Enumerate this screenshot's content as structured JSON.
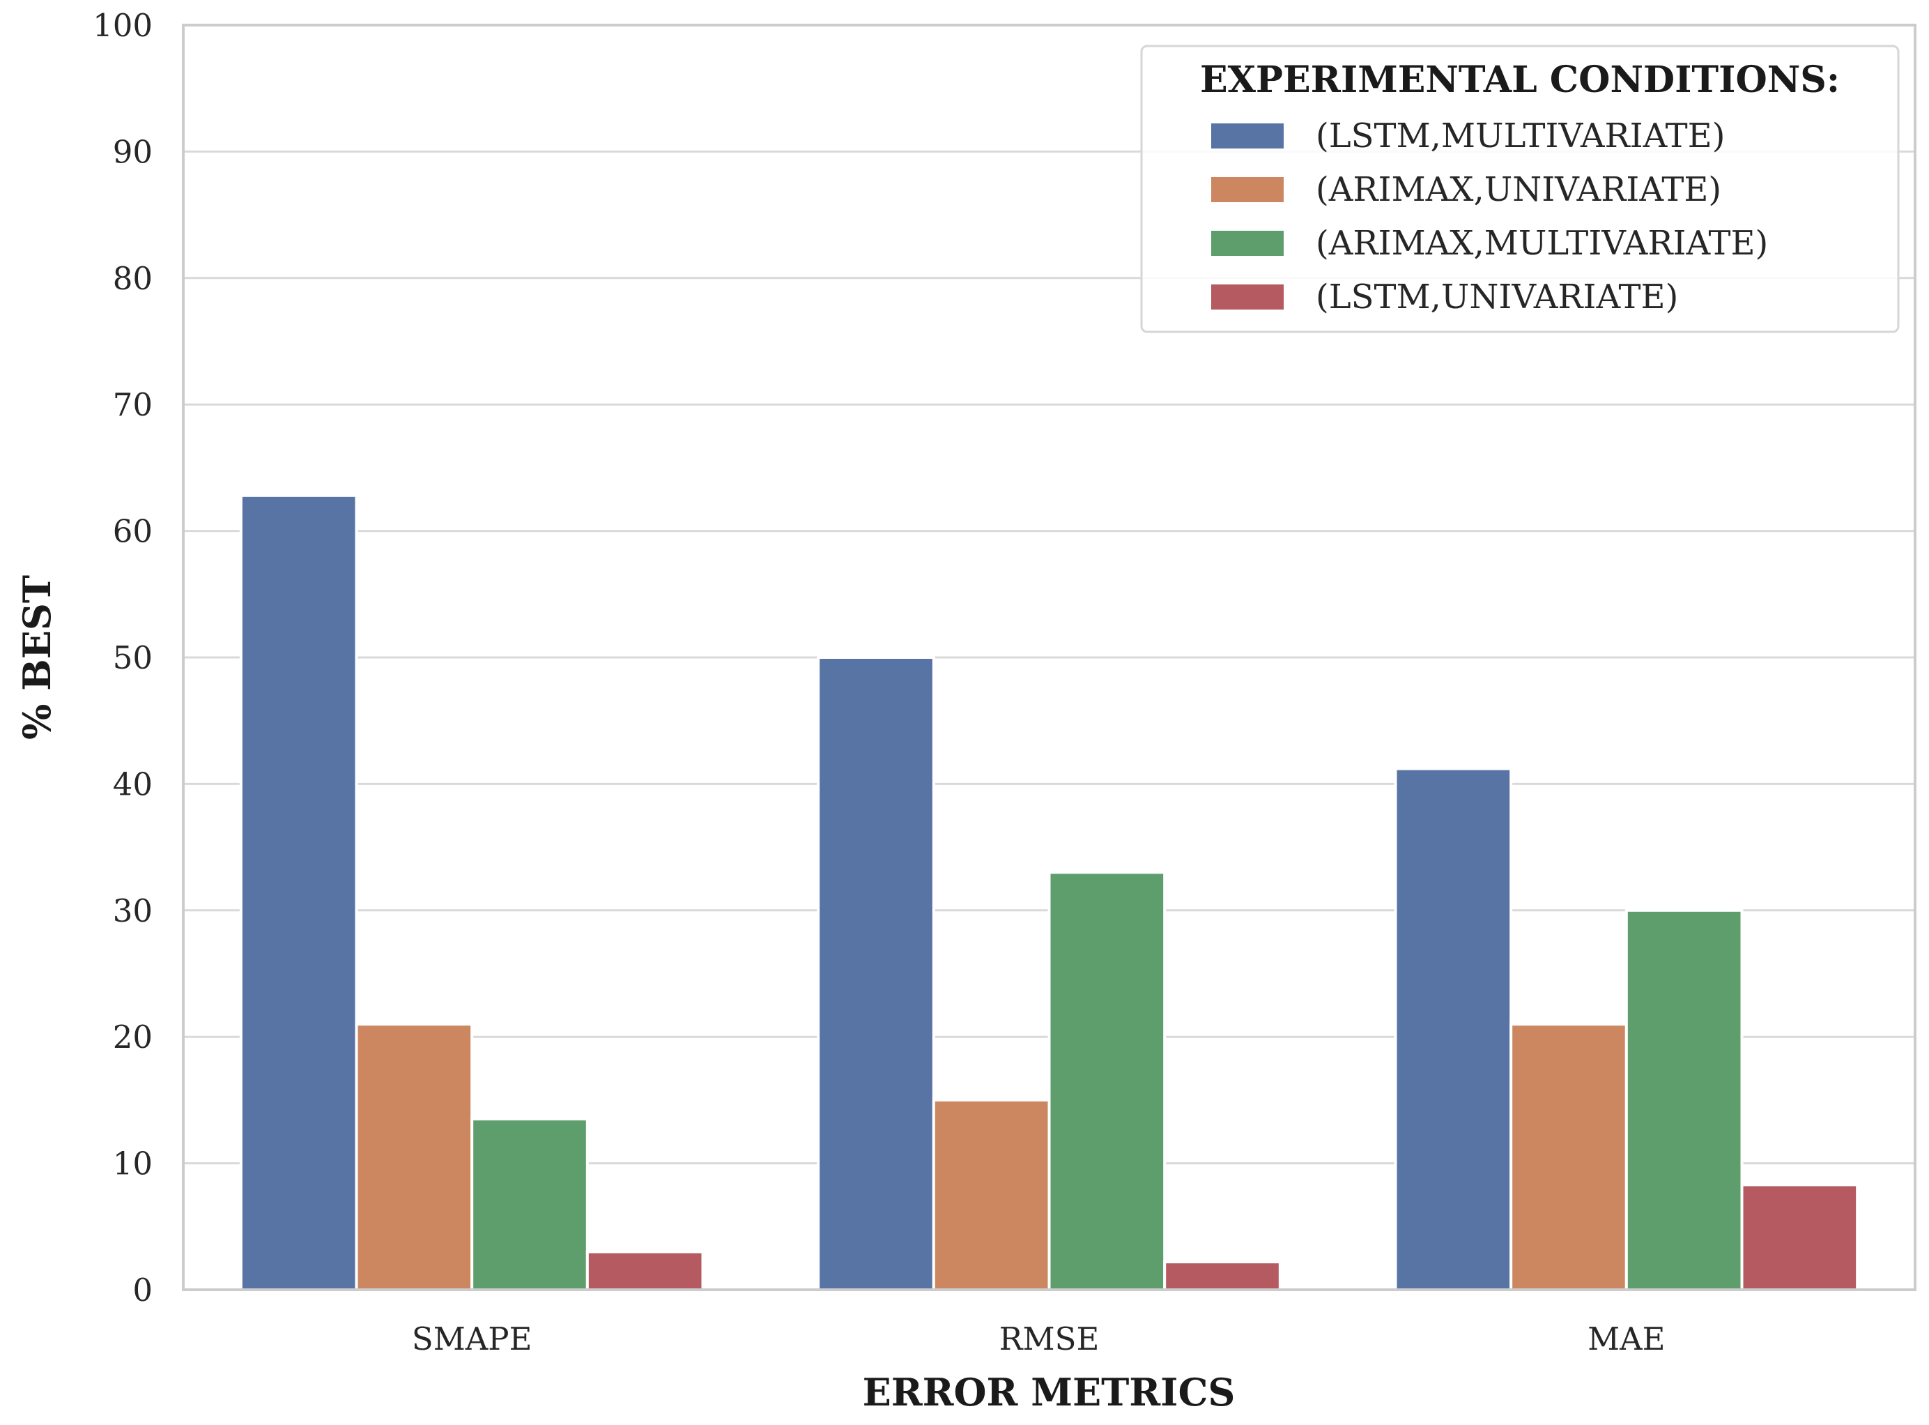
{
  "chart_data": {
    "type": "bar",
    "title": "",
    "xlabel": "ERROR METRICS",
    "ylabel": "% BEST",
    "ylim": [
      0,
      100
    ],
    "yticks": [
      0,
      10,
      20,
      30,
      40,
      50,
      60,
      70,
      80,
      90,
      100
    ],
    "grid": true,
    "categories": [
      "SMAPE",
      "RMSE",
      "MAE"
    ],
    "legend": {
      "title": "EXPERIMENTAL CONDITIONS:",
      "placement": "top-right"
    },
    "series": [
      {
        "name": "(LSTM,MULTIVARIATE)",
        "color": "#5874a5",
        "values": [
          62.8,
          50.0,
          41.2
        ]
      },
      {
        "name": "(ARIMAX,UNIVARIATE)",
        "color": "#cc8760",
        "values": [
          21.0,
          15.0,
          21.0
        ]
      },
      {
        "name": "(ARIMAX,MULTIVARIATE)",
        "color": "#5e9e6d",
        "values": [
          13.5,
          33.0,
          30.0
        ]
      },
      {
        "name": "(LSTM,UNIVARIATE)",
        "color": "#b45a60",
        "values": [
          3.0,
          2.2,
          8.3
        ]
      }
    ]
  }
}
